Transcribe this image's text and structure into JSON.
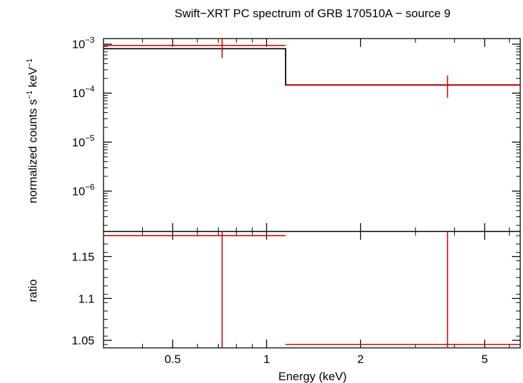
{
  "chart_data": {
    "type": "line",
    "title": "Swift−XRT PC spectrum of GRB 170510A − source 9",
    "xlabel": "Energy (keV)",
    "x_scale": "log",
    "xlim": [
      0.3,
      6.5
    ],
    "x_ticks": [
      {
        "value": 0.5,
        "label": "0.5"
      },
      {
        "value": 1,
        "label": "1"
      },
      {
        "value": 2,
        "label": "2"
      },
      {
        "value": 5,
        "label": "5"
      }
    ],
    "panels": [
      {
        "name": "spectrum",
        "ylabel_main": "normalized counts s",
        "ylabel_sup1": "−1",
        "ylabel_mid": " keV",
        "ylabel_sup2": "−1",
        "y_scale": "log",
        "ylim": [
          1.5e-07,
          0.0013
        ],
        "y_ticks": [
          {
            "value": 0.001,
            "base": "10",
            "exp": "−3"
          },
          {
            "value": 0.0001,
            "base": "10",
            "exp": "−4"
          },
          {
            "value": 1e-05,
            "base": "10",
            "exp": "−5"
          },
          {
            "value": 1e-06,
            "base": "10",
            "exp": "−6"
          }
        ],
        "data": [
          {
            "x_lo": 0.3,
            "x_hi": 1.15,
            "x": 0.72,
            "y": 0.00094,
            "y_lo": 0.00052,
            "y_hi": 0.00135
          },
          {
            "x_lo": 1.15,
            "x_hi": 6.5,
            "x": 3.8,
            "y": 0.000145,
            "y_lo": 8e-05,
            "y_hi": 0.00023
          }
        ],
        "model": [
          {
            "x_lo": 0.3,
            "x_hi": 1.15,
            "y": 0.00081
          },
          {
            "x_lo": 1.15,
            "x_hi": 6.5,
            "y": 0.000147
          }
        ]
      },
      {
        "name": "ratio",
        "ylabel": "ratio",
        "y_scale": "linear",
        "ylim": [
          1.041,
          1.18
        ],
        "y_ticks": [
          {
            "value": 1.15,
            "label": "1.15"
          },
          {
            "value": 1.1,
            "label": "1.1"
          },
          {
            "value": 1.05,
            "label": "1.05"
          }
        ],
        "data": [
          {
            "x_lo": 0.3,
            "x_hi": 1.15,
            "x": 0.72,
            "y": 1.175,
            "y_lo": 1.041,
            "y_hi": 1.18
          },
          {
            "x_lo": 1.15,
            "x_hi": 6.5,
            "x": 3.8,
            "y": 1.045,
            "y_lo": 1.041,
            "y_hi": 1.18
          }
        ]
      }
    ],
    "colors": {
      "data": "#dd0000",
      "model": "#000000",
      "axes": "#000000"
    }
  }
}
